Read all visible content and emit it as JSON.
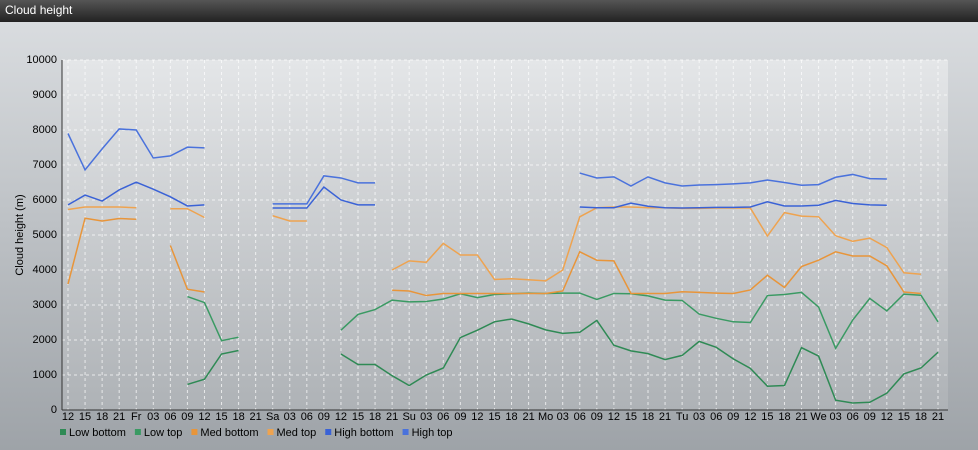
{
  "chart_data": {
    "type": "line",
    "title": "Cloud height",
    "y_label": "Cloud height (m)",
    "categories": [
      "12",
      "15",
      "18",
      "21",
      "Fr",
      "03",
      "06",
      "09",
      "12",
      "15",
      "18",
      "21",
      "Sa",
      "03",
      "06",
      "09",
      "12",
      "15",
      "18",
      "21",
      "Su",
      "03",
      "06",
      "09",
      "12",
      "15",
      "18",
      "21",
      "Mo",
      "03",
      "06",
      "09",
      "12",
      "15",
      "18",
      "21",
      "Tu",
      "03",
      "06",
      "09",
      "12",
      "15",
      "18",
      "21",
      "We",
      "03",
      "06",
      "09",
      "12",
      "15",
      "18",
      "21"
    ],
    "ylim": [
      0,
      10000
    ],
    "yticks": [
      0,
      1000,
      2000,
      3000,
      4000,
      5000,
      6000,
      7000,
      8000,
      9000,
      10000
    ],
    "grid": true,
    "series": [
      {
        "name": "Low bottom",
        "color": "#2f8a55",
        "values": [
          null,
          null,
          null,
          null,
          null,
          null,
          null,
          730,
          880,
          1600,
          1700,
          null,
          null,
          null,
          null,
          null,
          1600,
          1300,
          1300,
          980,
          700,
          1000,
          1200,
          2070,
          2280,
          2520,
          2600,
          2460,
          2290,
          2190,
          2220,
          2560,
          1850,
          1690,
          1610,
          1440,
          1560,
          1960,
          1790,
          1460,
          1190,
          680,
          700,
          1780,
          1540,
          280,
          200,
          220,
          480,
          1030,
          1200,
          1650
        ]
      },
      {
        "name": "Low top",
        "color": "#3a9a63",
        "values": [
          null,
          null,
          null,
          null,
          null,
          null,
          null,
          3240,
          3070,
          1980,
          2080,
          null,
          null,
          null,
          null,
          null,
          2280,
          2730,
          2870,
          3140,
          3090,
          3100,
          3170,
          3320,
          3210,
          3300,
          3320,
          3340,
          3330,
          3340,
          3340,
          3160,
          3330,
          3320,
          3260,
          3140,
          3130,
          2740,
          2620,
          2520,
          2500,
          3270,
          3300,
          3360,
          2940,
          1760,
          2570,
          3190,
          2830,
          3310,
          3280,
          2520
        ]
      },
      {
        "name": "Med bottom",
        "color": "#e8953a",
        "values": [
          3600,
          5480,
          5400,
          5470,
          5450,
          null,
          4700,
          3450,
          3370,
          null,
          null,
          null,
          null,
          null,
          null,
          null,
          null,
          null,
          null,
          3420,
          3400,
          3270,
          3330,
          3330,
          3330,
          3330,
          3330,
          3330,
          3330,
          3400,
          4520,
          4280,
          4260,
          3330,
          3330,
          3330,
          3380,
          3360,
          3340,
          3330,
          3430,
          3850,
          3500,
          4100,
          4280,
          4520,
          4400,
          4400,
          4120,
          3370,
          3330,
          null
        ]
      },
      {
        "name": "Med top",
        "color": "#eea350",
        "values": [
          5730,
          5800,
          5800,
          5800,
          5780,
          null,
          5750,
          5750,
          5500,
          null,
          null,
          null,
          5550,
          5400,
          5400,
          null,
          null,
          null,
          null,
          4000,
          4260,
          4220,
          4760,
          4430,
          4430,
          3730,
          3750,
          3720,
          3690,
          4000,
          5520,
          5780,
          5800,
          5800,
          5780,
          5780,
          5760,
          5760,
          5770,
          5770,
          5770,
          4970,
          5640,
          5540,
          5520,
          4980,
          4820,
          4910,
          4640,
          3920,
          3880,
          null
        ]
      },
      {
        "name": "High bottom",
        "color": "#3a62d6",
        "values": [
          5860,
          6140,
          5970,
          6290,
          6510,
          6310,
          6090,
          5830,
          5860,
          null,
          null,
          null,
          5770,
          5770,
          5770,
          6370,
          6000,
          5860,
          5860,
          null,
          null,
          null,
          null,
          null,
          null,
          null,
          null,
          null,
          null,
          null,
          5800,
          5780,
          5780,
          5910,
          5820,
          5780,
          5770,
          5780,
          5790,
          5790,
          5800,
          5950,
          5830,
          5830,
          5850,
          5990,
          5900,
          5860,
          5850,
          null,
          null,
          null
        ]
      },
      {
        "name": "High top",
        "color": "#4a72dc",
        "values": [
          7900,
          6860,
          7460,
          8030,
          8000,
          7200,
          7260,
          7510,
          7490,
          null,
          null,
          null,
          5890,
          5890,
          5890,
          6690,
          6630,
          6490,
          6490,
          null,
          null,
          null,
          null,
          null,
          null,
          null,
          null,
          null,
          null,
          null,
          6770,
          6630,
          6660,
          6400,
          6660,
          6490,
          6400,
          6430,
          6440,
          6460,
          6490,
          6570,
          6500,
          6420,
          6440,
          6650,
          6730,
          6610,
          6600,
          null,
          null,
          null
        ]
      }
    ]
  }
}
